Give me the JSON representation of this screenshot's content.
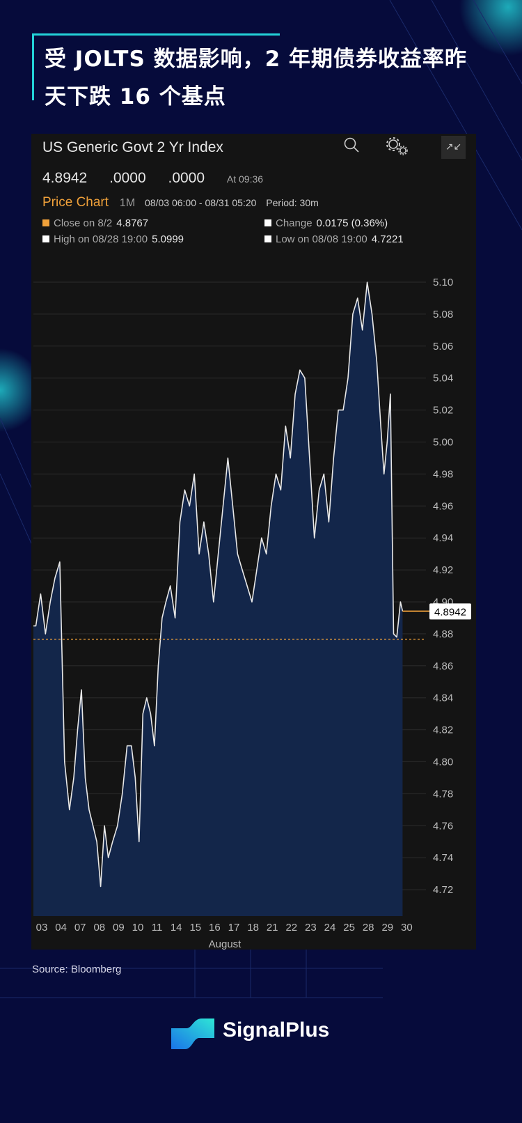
{
  "headline": "受 JOLTS 数据影响，2 年期债券收益率昨天下跌 16 个基点",
  "panel": {
    "title": "US Generic Govt 2 Yr Index",
    "last": "4.8942",
    "change1": ".0000",
    "change2": ".0000",
    "time": "At 09:36",
    "chart_label": "Price Chart",
    "range": "1M",
    "dates": "08/03 06:00 - 08/31 05:20",
    "period": "Period: 30m",
    "legend": [
      {
        "label": "Close on 8/2",
        "value": "4.8767",
        "color": "#f0a13a"
      },
      {
        "label": "Change",
        "value": "0.0175 (0.36%)",
        "color": "#ffffff"
      },
      {
        "label": "High on 08/28 19:00",
        "value": "5.0999",
        "color": "#ffffff"
      },
      {
        "label": "Low on 08/08 19:00",
        "value": "4.7221",
        "color": "#ffffff"
      }
    ],
    "icons": [
      "search-icon",
      "settings-gears-icon",
      "collapse-icon"
    ]
  },
  "chart_data": {
    "type": "area",
    "xlabel": "August",
    "ylim": [
      4.7,
      5.11
    ],
    "yticks": [
      "5.10",
      "5.08",
      "5.06",
      "5.04",
      "5.02",
      "5.00",
      "4.98",
      "4.96",
      "4.94",
      "4.92",
      "4.90",
      "4.88",
      "4.86",
      "4.84",
      "4.82",
      "4.80",
      "4.78",
      "4.76",
      "4.74",
      "4.72"
    ],
    "grid": true,
    "reference_line": {
      "value": 4.8767,
      "color": "#f0a13a",
      "style": "dashed"
    },
    "last_value": 4.8942,
    "last_label": "4.8942",
    "line_color": "#e8e8e8",
    "fill_color": "#13264a",
    "days": [
      {
        "label": "03",
        "values": [
          4.885,
          4.905,
          4.88,
          4.9
        ]
      },
      {
        "label": "04",
        "values": [
          4.915,
          4.925,
          4.8,
          4.77
        ]
      },
      {
        "label": "07",
        "values": [
          4.79,
          4.82,
          4.845,
          4.79,
          4.77
        ]
      },
      {
        "label": "08",
        "values": [
          4.76,
          4.75,
          4.722,
          4.76,
          4.74
        ]
      },
      {
        "label": "09",
        "values": [
          4.75,
          4.76,
          4.78,
          4.81
        ]
      },
      {
        "label": "10",
        "values": [
          4.81,
          4.79,
          4.75,
          4.83,
          4.84
        ]
      },
      {
        "label": "11",
        "values": [
          4.83,
          4.81,
          4.86,
          4.89,
          4.9
        ]
      },
      {
        "label": "14",
        "values": [
          4.91,
          4.89,
          4.95,
          4.97
        ]
      },
      {
        "label": "15",
        "values": [
          4.96,
          4.98,
          4.93,
          4.95
        ]
      },
      {
        "label": "16",
        "values": [
          4.93,
          4.9,
          4.93,
          4.96
        ]
      },
      {
        "label": "17",
        "values": [
          4.99,
          4.96,
          4.93,
          4.92
        ]
      },
      {
        "label": "18",
        "values": [
          4.91,
          4.9,
          4.92,
          4.94
        ]
      },
      {
        "label": "21",
        "values": [
          4.93,
          4.96,
          4.98,
          4.97
        ]
      },
      {
        "label": "22",
        "values": [
          5.01,
          4.99,
          5.03,
          5.045
        ]
      },
      {
        "label": "23",
        "values": [
          5.04,
          4.99,
          4.94,
          4.97
        ]
      },
      {
        "label": "24",
        "values": [
          4.98,
          4.95,
          4.99,
          5.02
        ]
      },
      {
        "label": "25",
        "values": [
          5.02,
          5.04,
          5.08,
          5.09
        ]
      },
      {
        "label": "28",
        "values": [
          5.07,
          5.0999,
          5.08,
          5.05
        ]
      },
      {
        "label": "29",
        "values": [
          5.01,
          4.98,
          5.0,
          5.03,
          4.88,
          4.878
        ]
      },
      {
        "label": "30",
        "values": [
          4.9,
          4.8942
        ]
      }
    ]
  },
  "source": "Source: Bloomberg",
  "brand": "SignalPlus",
  "colors": {
    "background": "#060b3b",
    "accent": "#23d2d8",
    "panel": "#141414"
  }
}
